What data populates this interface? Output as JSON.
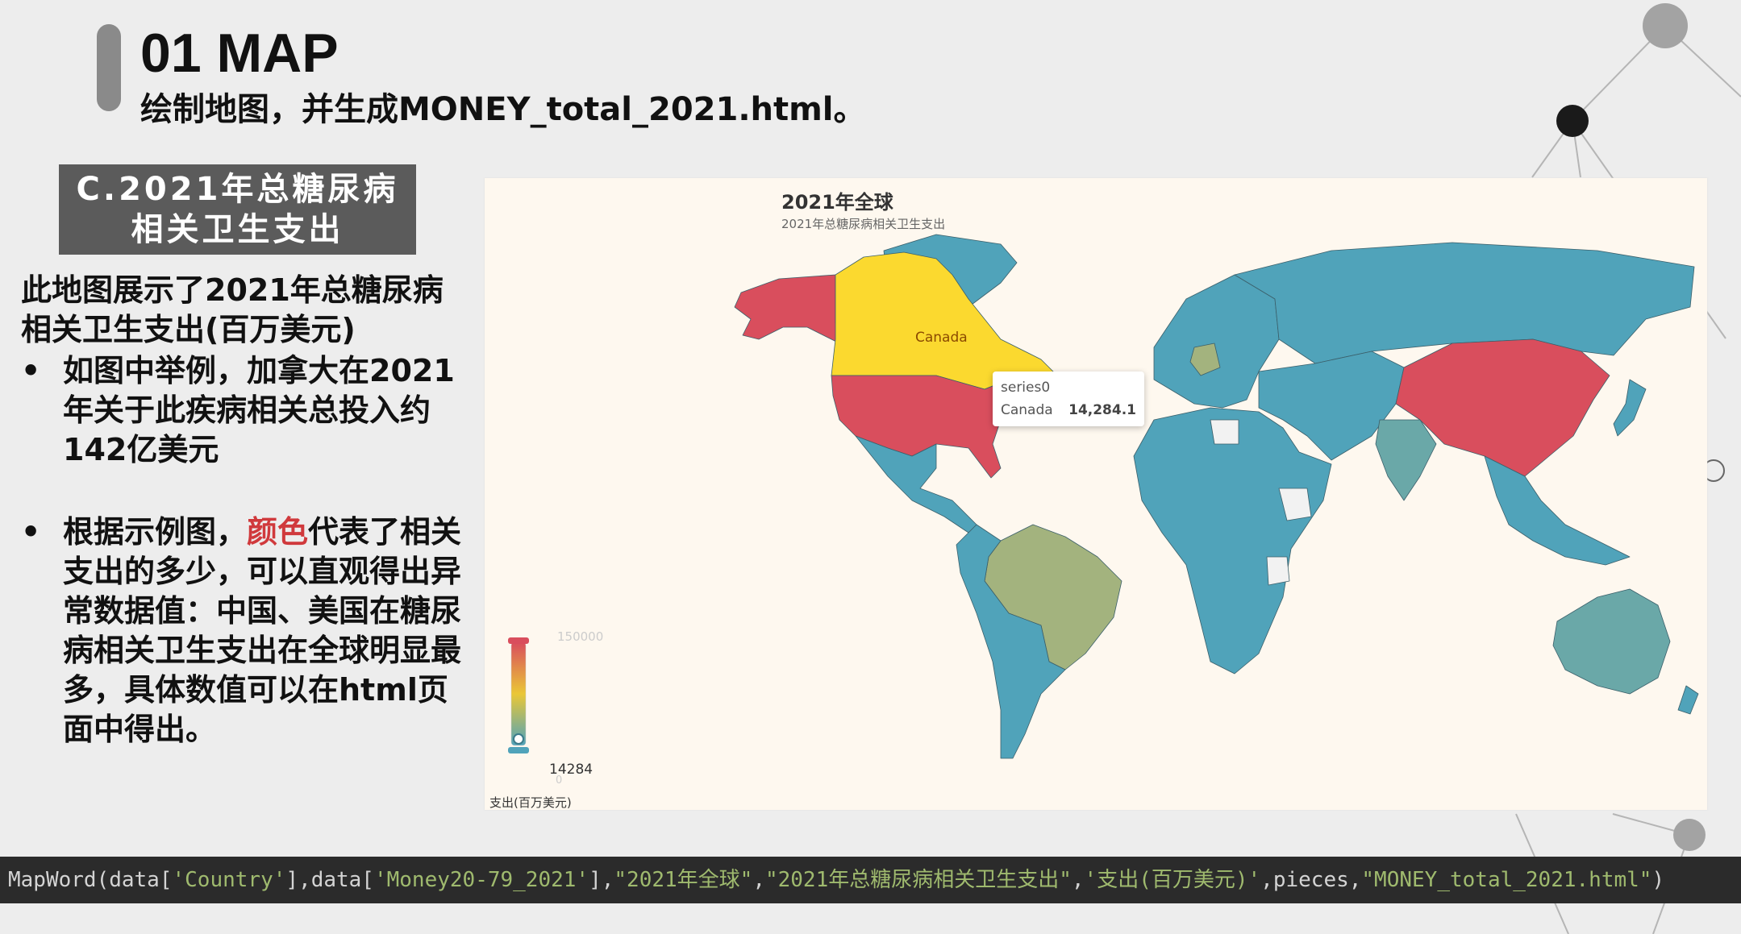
{
  "header": {
    "title": "01 MAP",
    "subtitle": "绘制地图，并生成MONEY_total_2021.html。"
  },
  "section": {
    "line1": "C.2021年总糖尿病",
    "line2": "相关卫生支出"
  },
  "intro": "此地图展示了2021年总糖尿病相关卫生支出(百万美元)",
  "bullets": [
    {
      "text": "如图中举例，加拿大在2021年关于此疾病相关总投入约142亿美元"
    },
    {
      "pre": "根据示例图，",
      "highlight": "颜色",
      "post": "代表了相关支出的多少，可以直观得出异常数据值：中国、美国在糖尿病相关卫生支出在全球明显最多，具体数值可以在html页面中得出。"
    }
  ],
  "map": {
    "title": "2021年全球",
    "subtitle": "2021年总糖尿病相关卫生支出",
    "country_label": "Canada",
    "tooltip": {
      "series": "series0",
      "country": "Canada",
      "value": "14,284.1"
    },
    "legend": {
      "max_label": "150000",
      "min_label": "14284",
      "zero_label": "0",
      "name": "支出(百万美元)",
      "colors": [
        "#d94e5d",
        "#eac736",
        "#50a3ba"
      ]
    },
    "region_colors": {
      "high": "#d94e5d",
      "mid_high": "#fbd92f",
      "mid": "#a3b37e",
      "low": "#50a3ba",
      "none": "#f2f2f2"
    }
  },
  "code": {
    "fn": "MapWord(data[",
    "a1": "'Country'",
    "p1": "],data[",
    "a2": "'Money20-79_2021'",
    "p2": "],",
    "a3": "\"2021年全球\"",
    "p3": ",",
    "a4": "\"2021年总糖尿病相关卫生支出\"",
    "p4": ",",
    "a5": "'支出(百万美元)'",
    "p5": ",pieces,",
    "a6": "\"MONEY_total_2021.html\"",
    "p6": ")"
  }
}
